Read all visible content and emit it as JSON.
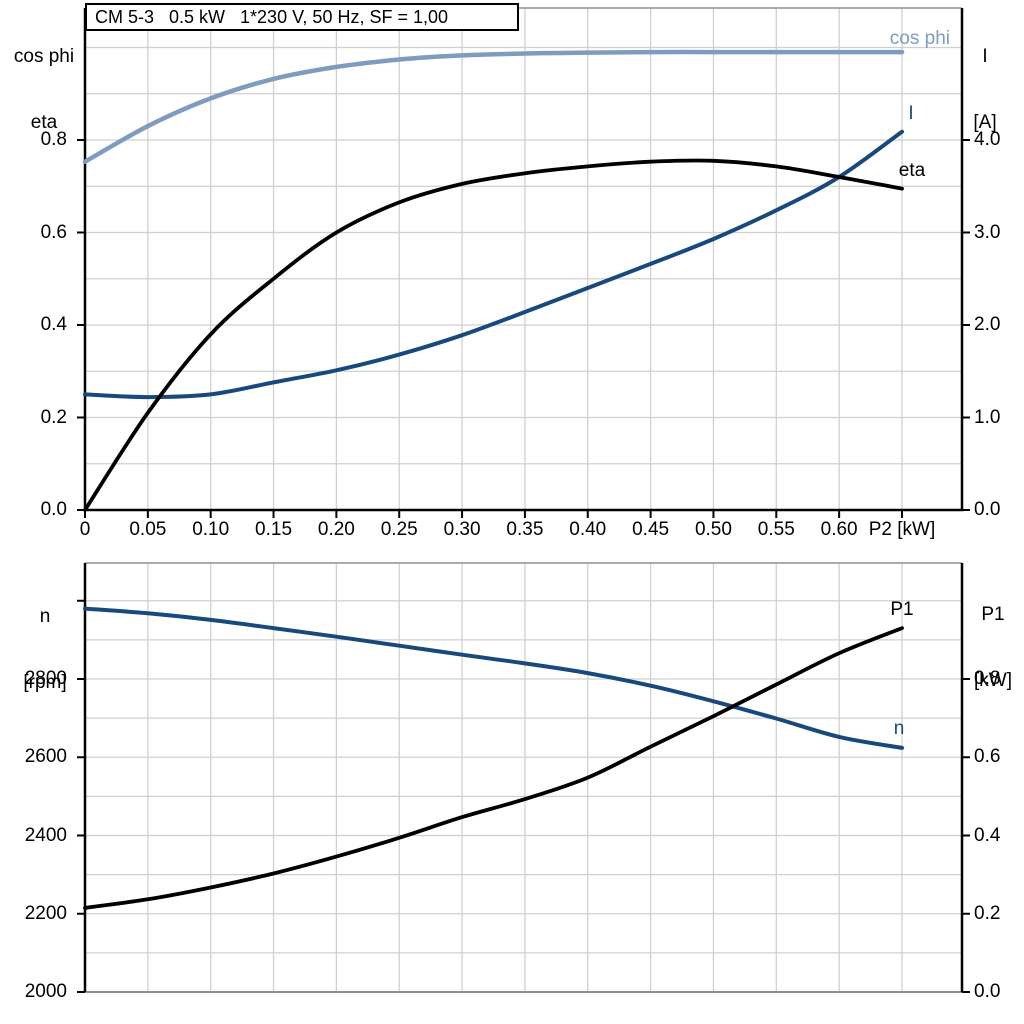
{
  "title_box": {
    "text": "CM 5-3   0.5 kW   1*230 V, 50 Hz, SF = 1,00"
  },
  "colors": {
    "dark_blue": "#17497e",
    "light_blue": "#7d9cc0",
    "black": "#000000",
    "grid": "#d0d0d0"
  },
  "chart_data": [
    {
      "id": "motor-electrical-curves",
      "type": "line",
      "x_axis": {
        "label": "P2 [kW]",
        "range": [
          0,
          0.7
        ],
        "grid_step": 0.05,
        "tick_values": [
          0,
          0.05,
          0.1,
          0.15,
          0.2,
          0.25,
          0.3,
          0.35,
          0.4,
          0.45,
          0.5,
          0.55,
          0.6,
          0.65
        ],
        "tick_labels": [
          "0",
          "0.05",
          "0.10",
          "0.15",
          "0.20",
          "0.25",
          "0.30",
          "0.35",
          "0.40",
          "0.45",
          "0.50",
          "0.55",
          "0.60",
          "P2 [kW]"
        ]
      },
      "left_axis": {
        "title_lines": [
          "cos phi",
          "eta"
        ],
        "range": [
          0,
          1.085
        ],
        "grid_step": 0.1,
        "tick_values": [
          0,
          0.2,
          0.4,
          0.6,
          0.8
        ],
        "tick_labels": [
          "0.0",
          "0.2",
          "0.4",
          "0.6",
          "0.8"
        ]
      },
      "right_axis": {
        "title_lines": [
          "I",
          "[A]"
        ],
        "range": [
          0,
          5.43
        ],
        "tick_values": [
          0,
          1,
          2,
          3,
          4
        ],
        "tick_labels": [
          "0.0",
          "1.0",
          "2.0",
          "3.0",
          "4.0"
        ]
      },
      "x": [
        0,
        0.05,
        0.1,
        0.15,
        0.2,
        0.25,
        0.3,
        0.35,
        0.4,
        0.45,
        0.5,
        0.55,
        0.6,
        0.65
      ],
      "series": [
        {
          "name": "cos phi",
          "axis": "left",
          "color": "#7d9cc0",
          "width": 4.5,
          "values": [
            0.753,
            0.83,
            0.89,
            0.932,
            0.958,
            0.974,
            0.983,
            0.987,
            0.989,
            0.99,
            0.99,
            0.99,
            0.99,
            0.99
          ]
        },
        {
          "name": "I",
          "axis": "right",
          "color": "#17497e",
          "width": 4,
          "values": [
            1.25,
            1.22,
            1.25,
            1.38,
            1.51,
            1.68,
            1.89,
            2.14,
            2.4,
            2.66,
            2.93,
            3.24,
            3.6,
            4.09
          ]
        },
        {
          "name": "eta",
          "axis": "left",
          "color": "#000000",
          "width": 3.8,
          "values": [
            0,
            0.21,
            0.38,
            0.5,
            0.6,
            0.665,
            0.705,
            0.728,
            0.743,
            0.753,
            0.755,
            0.743,
            0.72,
            0.695
          ]
        }
      ]
    },
    {
      "id": "speed-power-curves",
      "type": "line",
      "x_axis": {
        "label": "",
        "range": [
          0,
          0.7
        ],
        "grid_step": 0.05,
        "tick_values": [],
        "tick_labels": []
      },
      "left_axis": {
        "title_lines": [
          "n",
          "[rpm]"
        ],
        "range": [
          2000,
          3096
        ],
        "grid_step": 100,
        "tick_values": [
          2000,
          2200,
          2400,
          2600,
          2800
        ],
        "tick_labels": [
          "2000",
          "2200",
          "2400",
          "2600",
          "2800"
        ],
        "extra_unlabeled_ticks": [
          3000
        ]
      },
      "right_axis": {
        "title_lines": [
          "P1",
          "[kW]"
        ],
        "range": [
          0,
          1.097
        ],
        "tick_values": [
          0,
          0.2,
          0.4,
          0.6,
          0.8
        ],
        "tick_labels": [
          "0.0",
          "0.2",
          "0.4",
          "0.6",
          "0.8"
        ]
      },
      "x": [
        0,
        0.05,
        0.1,
        0.15,
        0.2,
        0.25,
        0.3,
        0.35,
        0.4,
        0.45,
        0.5,
        0.55,
        0.6,
        0.65
      ],
      "series": [
        {
          "name": "n",
          "axis": "left",
          "color": "#17497e",
          "width": 4,
          "values": [
            2980,
            2968,
            2951,
            2930,
            2908,
            2885,
            2862,
            2840,
            2815,
            2783,
            2743,
            2699,
            2652,
            2624
          ]
        },
        {
          "name": "P1",
          "axis": "right",
          "color": "#000000",
          "width": 3.8,
          "values": [
            0.215,
            0.237,
            0.267,
            0.303,
            0.346,
            0.394,
            0.447,
            0.493,
            0.548,
            0.627,
            0.705,
            0.786,
            0.866,
            0.93
          ]
        }
      ]
    }
  ]
}
